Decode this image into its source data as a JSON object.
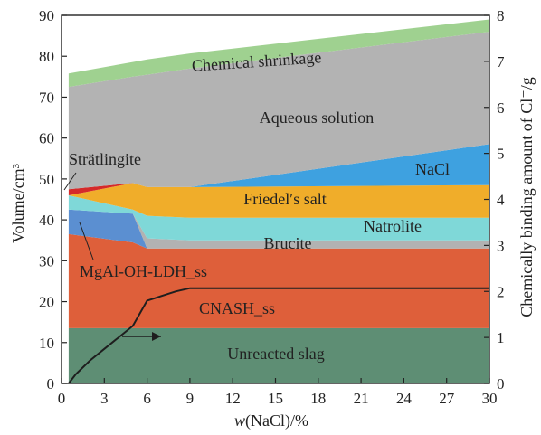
{
  "chart_data": {
    "type": "area",
    "title": "",
    "xlabel_italic": "w",
    "xlabel_rest": "(NaCl)/%",
    "ylabel_left": "Volume/cm³",
    "ylabel_right": "Chemically binding amount of Cl⁻/g",
    "xlim": [
      0,
      30
    ],
    "ylim_left": [
      0,
      90
    ],
    "ylim_right": [
      0,
      8
    ],
    "x_ticks": [
      0,
      3,
      6,
      9,
      12,
      15,
      18,
      21,
      24,
      27,
      30
    ],
    "y_ticks_left": [
      0,
      10,
      20,
      30,
      40,
      50,
      60,
      70,
      80,
      90
    ],
    "y_ticks_right": [
      0,
      1,
      2,
      3,
      4,
      5,
      6,
      7,
      8
    ],
    "x": [
      0.5,
      5,
      6,
      9,
      30
    ],
    "layers": [
      {
        "name": "Unreacted slag",
        "color": "#5e8e74",
        "upper": [
          13.5,
          13.5,
          13.5,
          13.5,
          13.5
        ]
      },
      {
        "name": "CNASH_ss",
        "color": "#de5f3a",
        "upper": [
          36.5,
          34.5,
          33.0,
          33.0,
          33.0
        ]
      },
      {
        "name": "MgAl-OH-LDH_ss",
        "color": "#5b8fd1",
        "upper": [
          42.5,
          41.5,
          33.0,
          33.0,
          33.0
        ]
      },
      {
        "name": "Brucite",
        "color": "#b2b2b2",
        "upper": [
          42.5,
          41.5,
          35.5,
          35.0,
          35.0
        ]
      },
      {
        "name": "Natrolite",
        "color": "#7fd8d8",
        "upper": [
          46.0,
          42.5,
          41.0,
          40.5,
          40.5
        ]
      },
      {
        "name": "Friedel's salt",
        "color": "#f0ad2a",
        "upper": [
          46.0,
          49.0,
          48.0,
          48.0,
          48.5
        ]
      },
      {
        "name": "Strätlingite",
        "color": "#d52a2a",
        "upper": [
          47.5,
          49.0,
          48.0,
          48.0,
          48.5
        ]
      },
      {
        "name": "NaCl",
        "color": "#3ea1e0",
        "upper": [
          47.5,
          49.0,
          48.0,
          48.0,
          58.5
        ]
      },
      {
        "name": "Aqueous solution",
        "color": "#b3b3b3",
        "upper": [
          72.5,
          75.0,
          75.5,
          77.0,
          86.0
        ]
      },
      {
        "name": "Chemical shrinkage",
        "color": "#9fd190",
        "upper": [
          75.8,
          78.6,
          79.2,
          80.7,
          89.0
        ]
      }
    ],
    "cl_binding": {
      "x": [
        0.5,
        1,
        2,
        3,
        4,
        5,
        6,
        6.5,
        7,
        8,
        9,
        30
      ],
      "y": [
        0,
        0.2,
        0.5,
        0.75,
        1.0,
        1.25,
        1.8,
        1.85,
        1.9,
        2.0,
        2.07,
        2.07
      ]
    },
    "annotations": {
      "chemical_shrinkage": "Chemical shrinkage",
      "aqueous_solution": "Aqueous solution",
      "stratlingite": "Strätlingite",
      "nacl": "NaCl",
      "friedels_salt": "Friedel′s salt",
      "natrolite": "Natrolite",
      "brucite": "Brucite",
      "ldh": "MgAl-OH-LDH_ss",
      "cnash": "CNASH_ss",
      "unreacted_slag": "Unreacted slag"
    }
  }
}
